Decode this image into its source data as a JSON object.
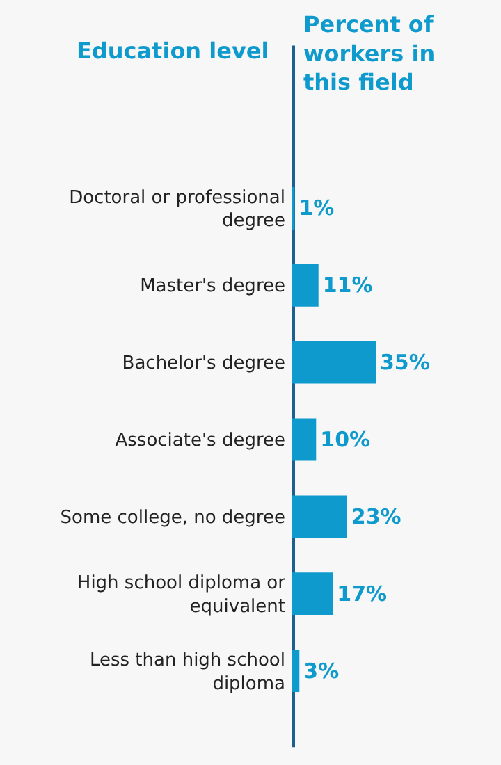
{
  "chart_data": {
    "type": "bar",
    "orientation": "horizontal",
    "ylabel": "Education level",
    "xlabel": "Percent of workers in this field",
    "categories": [
      "Doctoral or professional degree",
      "Master's degree",
      "Bachelor's degree",
      "Associate's degree",
      "Some college, no degree",
      "High school diploma or equivalent",
      "Less than high school diploma"
    ],
    "values": [
      1,
      11,
      35,
      10,
      23,
      17,
      3
    ],
    "value_labels": [
      "1%",
      "11%",
      "35%",
      "10%",
      "23%",
      "17%",
      "3%"
    ],
    "color": "#0f9acd",
    "grid": false
  }
}
